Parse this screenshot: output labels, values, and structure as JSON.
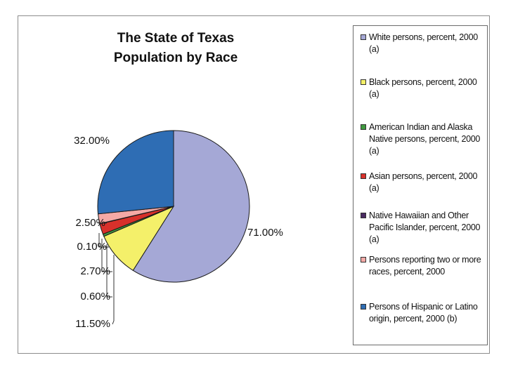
{
  "chart_data": {
    "type": "pie",
    "title_lines": [
      "The State of Texas",
      "Population by Race"
    ],
    "slices": [
      {
        "name": "White persons, percent, 2000 (a)",
        "value": 71.0,
        "label": "71.00%",
        "color": "#a5a8d6"
      },
      {
        "name": "Black persons, percent, 2000 (a)",
        "value": 11.5,
        "label": "11.50%",
        "color": "#f4f06a"
      },
      {
        "name": "American Indian and Alaska Native persons, percent, 2000 (a)",
        "value": 0.6,
        "label": "0.60%",
        "color": "#3f9a3f"
      },
      {
        "name": "Asian persons, percent, 2000 (a)",
        "value": 2.7,
        "label": "2.70%",
        "color": "#d8312b"
      },
      {
        "name": "Native Hawaiian and Other Pacific Islander, percent, 2000 (a)",
        "value": 0.1,
        "label": "0.10%",
        "color": "#4a2a62"
      },
      {
        "name": "Persons reporting two or more races, percent, 2000",
        "value": 2.5,
        "label": "2.50%",
        "color": "#f4a9a6"
      },
      {
        "name": "Persons of Hispanic or Latino origin, percent, 2000 (b)",
        "value": 32.0,
        "label": "32.00%",
        "color": "#2e6db4"
      }
    ],
    "legend_placement": "right"
  }
}
